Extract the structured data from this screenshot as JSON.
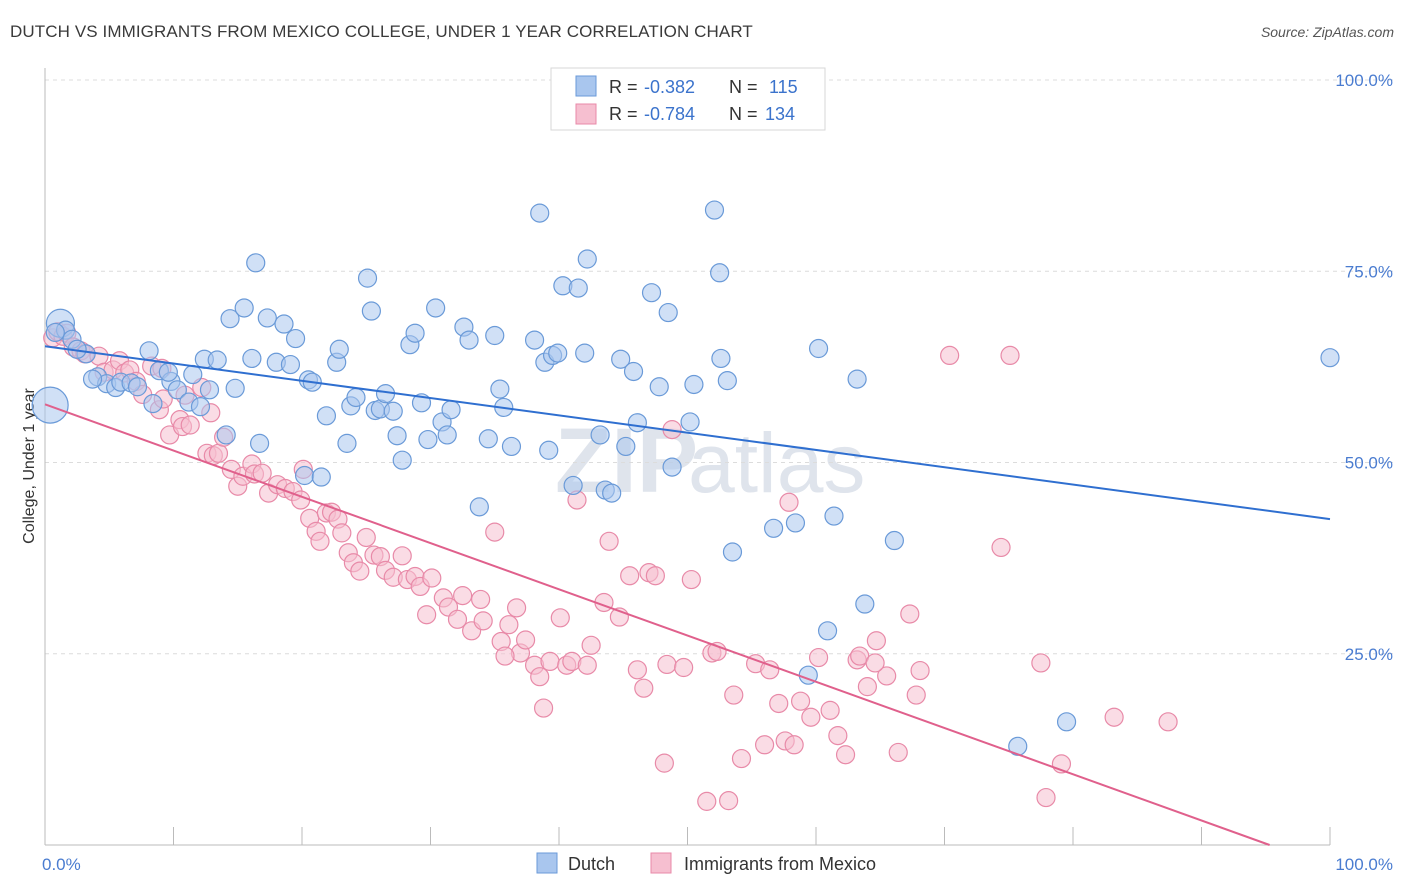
{
  "title": "DUTCH VS IMMIGRANTS FROM MEXICO COLLEGE, UNDER 1 YEAR CORRELATION CHART",
  "source": "Source: ZipAtlas.com",
  "watermark": {
    "zip": "ZIP",
    "atlas": "atlas"
  },
  "legend_top": [
    {
      "r_label": "R =",
      "r_value": "-0.382",
      "n_label": "N =",
      "n_value": "115"
    },
    {
      "r_label": "R =",
      "r_value": "-0.784",
      "n_label": "N =",
      "n_value": "134"
    }
  ],
  "legend_bottom": [
    "Dutch",
    "Immigrants from Mexico"
  ],
  "colors": {
    "dutch_fill": "#a9c6ee",
    "dutch_stroke": "#6a9ad8",
    "dutch_line": "#2f6fd0",
    "mex_fill": "#f6bfd0",
    "mex_stroke": "#e88aa8",
    "mex_line": "#e0608c",
    "tick_label": "#4a7cd0",
    "grid": "#dcdcdc"
  },
  "chart_data": {
    "type": "scatter",
    "title": "DUTCH VS IMMIGRANTS FROM MEXICO COLLEGE, UNDER 1 YEAR CORRELATION CHART",
    "xlabel": "",
    "ylabel": "College, Under 1 year",
    "xlim": [
      0,
      100
    ],
    "ylim": [
      0,
      100
    ],
    "x_tick_labels": [
      "0.0%",
      "100.0%"
    ],
    "y_tick_labels": [
      "25.0%",
      "50.0%",
      "75.0%",
      "100.0%"
    ],
    "y_ticks": [
      25,
      50,
      75,
      100
    ],
    "grid": true,
    "legend_placement": "top-center",
    "series": [
      {
        "name": "Dutch",
        "r": -0.382,
        "n": 115,
        "trend": {
          "x": [
            0,
            100
          ],
          "y": [
            65.2,
            42.6
          ]
        },
        "points": [
          [
            0.4,
            57.5
          ],
          [
            1.2,
            68.2
          ],
          [
            1.6,
            67.3
          ],
          [
            2.1,
            66.1
          ],
          [
            3.2,
            64.2
          ],
          [
            4.1,
            61.2
          ],
          [
            4.8,
            60.3
          ],
          [
            5.5,
            59.8
          ],
          [
            5.9,
            60.5
          ],
          [
            6.7,
            60.4
          ],
          [
            7.2,
            59.9
          ],
          [
            8.1,
            64.6
          ],
          [
            8.4,
            57.7
          ],
          [
            8.9,
            62
          ],
          [
            9.8,
            60.6
          ],
          [
            10.3,
            59.5
          ],
          [
            11.2,
            57.9
          ],
          [
            12.1,
            57.3
          ],
          [
            12.4,
            63.5
          ],
          [
            12.8,
            59.5
          ],
          [
            13.4,
            63.4
          ],
          [
            14.1,
            53.6
          ],
          [
            14.4,
            68.8
          ],
          [
            14.8,
            59.7
          ],
          [
            15.5,
            70.2
          ],
          [
            16.1,
            63.6
          ],
          [
            16.4,
            76.1
          ],
          [
            16.7,
            52.5
          ],
          [
            17.3,
            68.9
          ],
          [
            18,
            63.1
          ],
          [
            18.6,
            68.1
          ],
          [
            19.1,
            62.8
          ],
          [
            19.5,
            66.2
          ],
          [
            20.2,
            48.3
          ],
          [
            20.5,
            60.8
          ],
          [
            20.8,
            60.5
          ],
          [
            21.5,
            48.1
          ],
          [
            21.9,
            56.1
          ],
          [
            22.7,
            63.1
          ],
          [
            22.9,
            64.8
          ],
          [
            23.5,
            52.5
          ],
          [
            23.8,
            57.4
          ],
          [
            24.2,
            58.5
          ],
          [
            25.1,
            74.1
          ],
          [
            25.4,
            69.8
          ],
          [
            25.7,
            56.8
          ],
          [
            26.1,
            57
          ],
          [
            26.5,
            59
          ],
          [
            27.1,
            56.7
          ],
          [
            27.4,
            53.5
          ],
          [
            27.8,
            50.3
          ],
          [
            28.4,
            65.4
          ],
          [
            28.8,
            66.9
          ],
          [
            29.3,
            57.8
          ],
          [
            29.8,
            53
          ],
          [
            30.4,
            70.2
          ],
          [
            30.9,
            55.3
          ],
          [
            31.3,
            53.6
          ],
          [
            31.6,
            56.9
          ],
          [
            32.6,
            67.7
          ],
          [
            33,
            66
          ],
          [
            33.8,
            44.2
          ],
          [
            34.5,
            53.1
          ],
          [
            35,
            66.6
          ],
          [
            35.4,
            59.6
          ],
          [
            35.7,
            57.2
          ],
          [
            36.3,
            52.1
          ],
          [
            38.1,
            66
          ],
          [
            38.5,
            82.6
          ],
          [
            38.9,
            63.1
          ],
          [
            39.2,
            51.6
          ],
          [
            39.5,
            64
          ],
          [
            39.9,
            64.3
          ],
          [
            40.3,
            73.1
          ],
          [
            41.1,
            47
          ],
          [
            41.5,
            72.8
          ],
          [
            42,
            64.3
          ],
          [
            42.2,
            76.6
          ],
          [
            43.2,
            53.6
          ],
          [
            43.6,
            46.4
          ],
          [
            44.1,
            46
          ],
          [
            44.8,
            63.5
          ],
          [
            45.2,
            52.1
          ],
          [
            45.8,
            61.9
          ],
          [
            46.1,
            55.2
          ],
          [
            47.2,
            72.2
          ],
          [
            47.8,
            59.9
          ],
          [
            48.5,
            69.6
          ],
          [
            48.8,
            49.4
          ],
          [
            50.2,
            55.3
          ],
          [
            50.5,
            60.2
          ],
          [
            52.1,
            83
          ],
          [
            52.5,
            74.8
          ],
          [
            52.6,
            63.6
          ],
          [
            53.1,
            60.7
          ],
          [
            53.5,
            38.3
          ],
          [
            56.7,
            41.4
          ],
          [
            58.4,
            42.1
          ],
          [
            59.4,
            22.2
          ],
          [
            60.2,
            64.9
          ],
          [
            60.9,
            28
          ],
          [
            61.4,
            43
          ],
          [
            63.2,
            60.9
          ],
          [
            63.8,
            31.5
          ],
          [
            66.1,
            39.8
          ],
          [
            75.7,
            12.9
          ],
          [
            79.5,
            16.1
          ],
          [
            100,
            63.7
          ],
          [
            0.8,
            67
          ],
          [
            2.5,
            64.8
          ],
          [
            3.7,
            60.9
          ],
          [
            9.6,
            61.8
          ],
          [
            11.5,
            61.5
          ]
        ],
        "sizes": {
          "0": 18,
          "1": 14
        }
      },
      {
        "name": "Immigrants from Mexico",
        "r": -0.784,
        "n": 134,
        "trend": {
          "x": [
            0,
            95.3
          ],
          "y": [
            57.6,
            0
          ]
        },
        "points": [
          [
            0.6,
            66.3
          ],
          [
            1,
            67.1
          ],
          [
            1.4,
            66.5
          ],
          [
            1.7,
            66.9
          ],
          [
            2.2,
            65.1
          ],
          [
            2.8,
            64.6
          ],
          [
            3.1,
            64.2
          ],
          [
            4.2,
            63.9
          ],
          [
            4.6,
            61.8
          ],
          [
            5.3,
            62.1
          ],
          [
            5.8,
            63.3
          ],
          [
            6.2,
            61.7
          ],
          [
            6.6,
            62.1
          ],
          [
            7.1,
            60.6
          ],
          [
            7.6,
            58.9
          ],
          [
            8.3,
            62.6
          ],
          [
            8.9,
            56.9
          ],
          [
            9.2,
            58.3
          ],
          [
            9.7,
            53.6
          ],
          [
            10.5,
            55.6
          ],
          [
            10.7,
            54.7
          ],
          [
            11.3,
            54.9
          ],
          [
            12.2,
            59.8
          ],
          [
            12.6,
            51.2
          ],
          [
            13.1,
            50.9
          ],
          [
            13.5,
            51.2
          ],
          [
            13.9,
            53.3
          ],
          [
            14.5,
            49.1
          ],
          [
            15,
            46.9
          ],
          [
            15.4,
            48.2
          ],
          [
            16.1,
            49.8
          ],
          [
            16.3,
            48.5
          ],
          [
            16.9,
            48.6
          ],
          [
            17.4,
            46
          ],
          [
            18.1,
            47.1
          ],
          [
            18.7,
            46.6
          ],
          [
            19.3,
            46.2
          ],
          [
            19.9,
            45.1
          ],
          [
            20.1,
            49.1
          ],
          [
            20.6,
            42.7
          ],
          [
            21.1,
            41
          ],
          [
            21.4,
            39.7
          ],
          [
            21.9,
            43.4
          ],
          [
            22.3,
            43.5
          ],
          [
            22.8,
            42.6
          ],
          [
            23.1,
            40.8
          ],
          [
            23.6,
            38.2
          ],
          [
            24,
            36.9
          ],
          [
            24.5,
            35.8
          ],
          [
            25,
            40.2
          ],
          [
            25.6,
            37.9
          ],
          [
            26.1,
            37.7
          ],
          [
            26.5,
            35.9
          ],
          [
            27.1,
            35
          ],
          [
            27.8,
            37.8
          ],
          [
            28.2,
            34.7
          ],
          [
            28.8,
            35.1
          ],
          [
            29.2,
            33.8
          ],
          [
            29.7,
            30.1
          ],
          [
            30.1,
            34.9
          ],
          [
            31,
            32.3
          ],
          [
            31.4,
            31.1
          ],
          [
            32.1,
            29.5
          ],
          [
            32.5,
            32.6
          ],
          [
            33.2,
            28
          ],
          [
            33.9,
            32.1
          ],
          [
            34.1,
            29.3
          ],
          [
            35,
            40.9
          ],
          [
            35.5,
            26.6
          ],
          [
            36.1,
            28.8
          ],
          [
            36.7,
            31
          ],
          [
            37,
            25.1
          ],
          [
            37.4,
            26.8
          ],
          [
            38.1,
            23.5
          ],
          [
            38.5,
            22
          ],
          [
            38.8,
            17.9
          ],
          [
            39.3,
            24
          ],
          [
            40.1,
            29.7
          ],
          [
            40.6,
            23.5
          ],
          [
            41,
            24
          ],
          [
            41.4,
            45.1
          ],
          [
            42.2,
            23.5
          ],
          [
            42.5,
            26.1
          ],
          [
            43.5,
            31.7
          ],
          [
            43.9,
            39.7
          ],
          [
            44.7,
            29.8
          ],
          [
            45.5,
            35.2
          ],
          [
            46.1,
            22.9
          ],
          [
            46.6,
            20.5
          ],
          [
            47,
            35.6
          ],
          [
            47.5,
            35.2
          ],
          [
            48.2,
            10.7
          ],
          [
            48.4,
            23.6
          ],
          [
            48.8,
            54.3
          ],
          [
            49.7,
            23.2
          ],
          [
            50.3,
            34.7
          ],
          [
            51.5,
            5.7
          ],
          [
            51.9,
            25.1
          ],
          [
            52.3,
            25.3
          ],
          [
            53.2,
            5.8
          ],
          [
            53.6,
            19.6
          ],
          [
            54.2,
            11.3
          ],
          [
            55.3,
            23.7
          ],
          [
            56,
            13.1
          ],
          [
            56.4,
            22.9
          ],
          [
            57.1,
            18.5
          ],
          [
            57.6,
            13.6
          ],
          [
            57.9,
            44.8
          ],
          [
            58.3,
            13.1
          ],
          [
            58.8,
            18.8
          ],
          [
            59.6,
            16.7
          ],
          [
            60.2,
            24.5
          ],
          [
            61.1,
            17.6
          ],
          [
            61.7,
            14.3
          ],
          [
            62.3,
            11.8
          ],
          [
            63.2,
            24.2
          ],
          [
            64,
            20.7
          ],
          [
            64.7,
            26.7
          ],
          [
            65.5,
            22.1
          ],
          [
            66.4,
            12.1
          ],
          [
            67.3,
            30.2
          ],
          [
            67.8,
            19.6
          ],
          [
            68.1,
            22.8
          ],
          [
            70.4,
            64
          ],
          [
            74.4,
            38.9
          ],
          [
            75.1,
            64
          ],
          [
            77.5,
            23.8
          ],
          [
            77.9,
            6.2
          ],
          [
            79.1,
            10.6
          ],
          [
            83.2,
            16.7
          ],
          [
            87.4,
            16.1
          ],
          [
            9.1,
            62.3
          ],
          [
            10.9,
            58.8
          ],
          [
            12.9,
            56.5
          ],
          [
            63.4,
            24.7
          ],
          [
            64.6,
            23.8
          ],
          [
            35.8,
            24.7
          ]
        ]
      }
    ]
  }
}
